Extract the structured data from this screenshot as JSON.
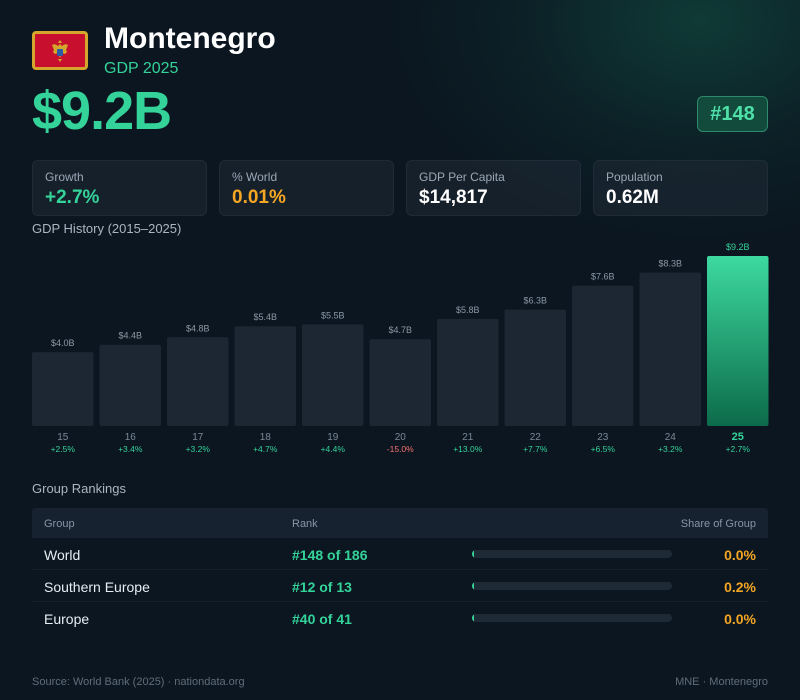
{
  "header": {
    "country": "Montenegro",
    "subtitle": "GDP 2025",
    "gdp_value": "$9.2B",
    "rank": "#148"
  },
  "stats": [
    {
      "label": "Growth",
      "value": "+2.7%",
      "color": "#34d399"
    },
    {
      "label": "% World",
      "value": "0.01%",
      "color": "#f5a623"
    },
    {
      "label": "GDP Per Capita",
      "value": "$14,817",
      "color": "#ffffff"
    },
    {
      "label": "Population",
      "value": "0.62M",
      "color": "#ffffff"
    }
  ],
  "chart_title": "GDP History (2015–2025)",
  "chart_data": {
    "type": "bar",
    "categories": [
      "15",
      "16",
      "17",
      "18",
      "19",
      "20",
      "21",
      "22",
      "23",
      "24",
      "25"
    ],
    "values": [
      4.0,
      4.4,
      4.8,
      5.4,
      5.5,
      4.7,
      5.8,
      6.3,
      7.6,
      8.3,
      9.2
    ],
    "value_labels": [
      "$4.0B",
      "$4.4B",
      "$4.8B",
      "$5.4B",
      "$5.5B",
      "$4.7B",
      "$5.8B",
      "$6.3B",
      "$7.6B",
      "$8.3B",
      "$9.2B"
    ],
    "growth_labels": [
      "+2.5%",
      "+3.4%",
      "+3.2%",
      "+4.7%",
      "+4.4%",
      "-15.0%",
      "+13.0%",
      "+7.7%",
      "+6.5%",
      "+3.2%",
      "+2.7%"
    ],
    "highlight_index": 10,
    "ylim": [
      0,
      9.2
    ],
    "colors": {
      "bar": "#1c2733",
      "highlight_top": "#3dd9a0",
      "highlight_bottom": "#0c6b4a",
      "positive": "#34d399",
      "negative": "#f87171"
    }
  },
  "rankings": {
    "title": "Group Rankings",
    "headers": {
      "group": "Group",
      "rank": "Rank",
      "share": "Share of Group"
    },
    "rows": [
      {
        "group": "World",
        "rank": "#148 of 186",
        "share": "0.0%",
        "share_fraction": 0.0
      },
      {
        "group": "Southern Europe",
        "rank": "#12 of 13",
        "share": "0.2%",
        "share_fraction": 0.002
      },
      {
        "group": "Europe",
        "rank": "#40 of 41",
        "share": "0.0%",
        "share_fraction": 0.0
      }
    ]
  },
  "footer": {
    "source": "Source: World Bank (2025) · nationdata.org",
    "code": "MNE · Montenegro"
  }
}
